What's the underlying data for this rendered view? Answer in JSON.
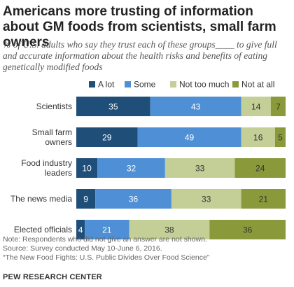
{
  "title": "Americans more trusting of information about GM foods from scientists, small farm owners",
  "subtitle": "% of U.S. adults who say they trust each of these groups____ to give full and accurate information about the health risks and benefits of eating genetically modified foods",
  "footer": {
    "note": "Note: Respondents who did not give an answer are not shown.",
    "source": "Source: Survey conducted May 10-June 6, 2016.",
    "report": "“The New Food Fights: U.S. Public Divides Over Food Science”",
    "brand": "PEW RESEARCH CENTER"
  },
  "chart_data": {
    "type": "bar",
    "orientation": "horizontal",
    "stacked": true,
    "categories": [
      "Scientists",
      "Small farm owners",
      "Food industry leaders",
      "The news media",
      "Elected officials"
    ],
    "category_lines": [
      [
        "Scientists"
      ],
      [
        "Small farm",
        "owners"
      ],
      [
        "Food industry",
        "leaders"
      ],
      [
        "The news media"
      ],
      [
        "Elected officials"
      ]
    ],
    "series": [
      {
        "name": "A lot",
        "color": "#1f4e79",
        "values": [
          35,
          29,
          10,
          9,
          4
        ]
      },
      {
        "name": "Some",
        "color": "#4e8fd6",
        "values": [
          43,
          49,
          32,
          36,
          21
        ]
      },
      {
        "name": "Not too much",
        "color": "#c4cf97",
        "values": [
          14,
          16,
          33,
          33,
          38
        ]
      },
      {
        "name": "Not at all",
        "color": "#8a9a3b",
        "values": [
          7,
          5,
          24,
          21,
          36
        ]
      }
    ],
    "data_label_colors": [
      "#ffffff",
      "#ffffff",
      "#333333",
      "#333333"
    ],
    "legend_position": "top",
    "grid": false,
    "xlim": [
      0,
      100
    ]
  }
}
